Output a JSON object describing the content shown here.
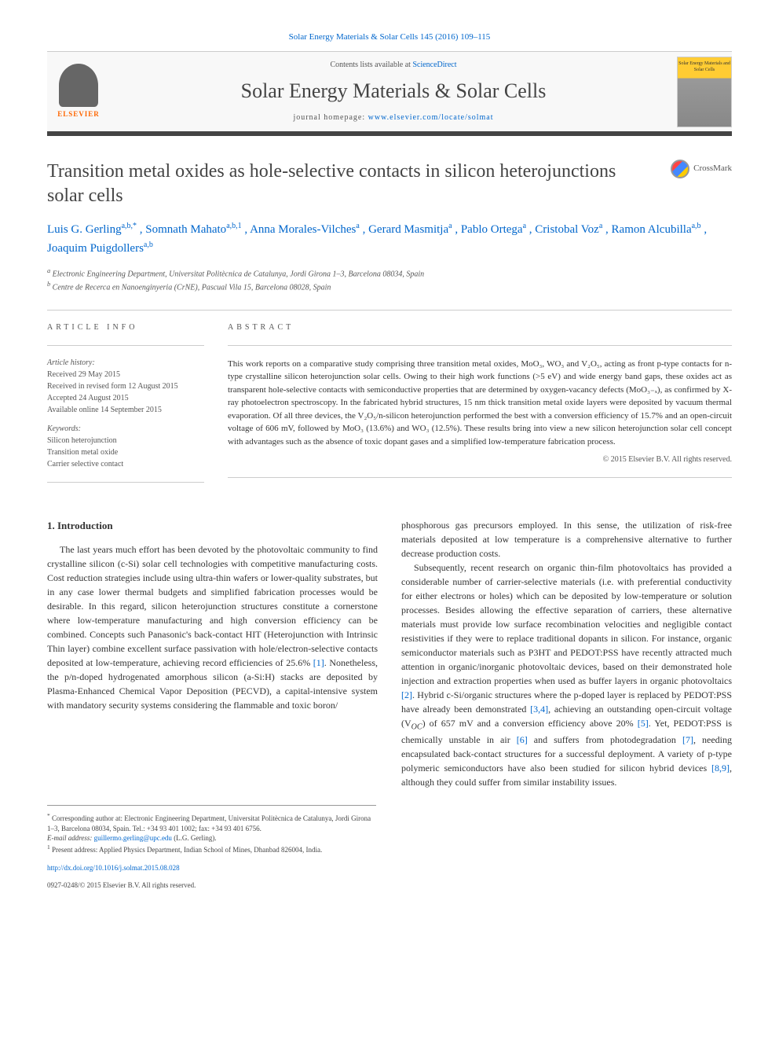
{
  "header": {
    "citation": "Solar Energy Materials & Solar Cells 145 (2016) 109–115",
    "contents_prefix": "Contents lists available at ",
    "contents_link": "ScienceDirect",
    "journal_name": "Solar Energy Materials & Solar Cells",
    "homepage_prefix": "journal homepage: ",
    "homepage_url": "www.elsevier.com/locate/solmat",
    "elsevier_label": "ELSEVIER",
    "cover_text": "Solar Energy Materials and Solar Cells"
  },
  "article": {
    "title": "Transition metal oxides as hole-selective contacts in silicon heterojunctions solar cells",
    "crossmark_label": "CrossMark",
    "authors_html": "Luis G. Gerling",
    "author_1": "Luis G. Gerling",
    "author_1_sup": "a,b,*",
    "author_2": ", Somnath Mahato",
    "author_2_sup": "a,b,1",
    "author_3": ", Anna Morales-Vilches",
    "author_3_sup": "a",
    "author_4": ", Gerard Masmitja",
    "author_4_sup": "a",
    "author_5": ", Pablo Ortega",
    "author_5_sup": "a",
    "author_6": ", Cristobal Voz",
    "author_6_sup": "a",
    "author_7": ", Ramon Alcubilla",
    "author_7_sup": "a,b",
    "author_8": ", Joaquim Puigdollers",
    "author_8_sup": "a,b",
    "affiliation_a": "Electronic Engineering Department, Universitat Politècnica de Catalunya, Jordi Girona 1–3, Barcelona 08034, Spain",
    "affiliation_b": "Centre de Recerca en Nanoenginyeria (CrNE), Pascual Vila 15, Barcelona 08028, Spain"
  },
  "info": {
    "heading": "ARTICLE INFO",
    "history_label": "Article history:",
    "received": "Received 29 May 2015",
    "revised": "Received in revised form 12 August 2015",
    "accepted": "Accepted 24 August 2015",
    "online": "Available online 14 September 2015",
    "keywords_label": "Keywords:",
    "kw1": "Silicon heterojunction",
    "kw2": "Transition metal oxide",
    "kw3": "Carrier selective contact"
  },
  "abstract": {
    "heading": "ABSTRACT",
    "text": "This work reports on a comparative study comprising three transition metal oxides, MoO₃, WO₃ and V₂O₅, acting as front p-type contacts for n-type crystalline silicon heterojunction solar cells. Owing to their high work functions (>5 eV) and wide energy band gaps, these oxides act as transparent hole-selective contacts with semiconductive properties that are determined by oxygen-vacancy defects (MoO₃₋ₓ), as confirmed by X-ray photoelectron spectroscopy. In the fabricated hybrid structures, 15 nm thick transition metal oxide layers were deposited by vacuum thermal evaporation. Of all three devices, the V₂O₅/n-silicon heterojunction performed the best with a conversion efficiency of 15.7% and an open-circuit voltage of 606 mV, followed by MoO₃ (13.6%) and WO₃ (12.5%). These results bring into view a new silicon heterojunction solar cell concept with advantages such as the absence of toxic dopant gases and a simplified low-temperature fabrication process.",
    "copyright": "© 2015 Elsevier B.V. All rights reserved."
  },
  "body": {
    "section_heading": "1. Introduction",
    "p1": "The last years much effort has been devoted by the photovoltaic community to find crystalline silicon (c-Si) solar cell technologies with competitive manufacturing costs. Cost reduction strategies include using ultra-thin wafers or lower-quality substrates, but in any case lower thermal budgets and simplified fabrication processes would be desirable. In this regard, silicon heterojunction structures constitute a cornerstone where low-temperature manufacturing and high conversion efficiency can be combined. Concepts such Panasonic's back-contact HIT (Heterojunction with Intrinsic Thin layer) combine excellent surface passivation with hole/electron-selective contacts deposited at low-temperature, achieving record efficiencies of 25.6% ",
    "p1_ref": "[1]",
    "p1_cont": ". Nonetheless, the p/n-doped hydrogenated amorphous silicon (a-Si:H) stacks are deposited by Plasma-Enhanced Chemical Vapor Deposition (PECVD), a capital-intensive system with mandatory security systems considering the flammable and toxic boron/",
    "p2_start": "phosphorous gas precursors employed. In this sense, the utilization of risk-free materials deposited at low temperature is a comprehensive alternative to further decrease production costs.",
    "p3": "Subsequently, recent research on organic thin-film photovoltaics has provided a considerable number of carrier-selective materials (i.e. with preferential conductivity for either electrons or holes) which can be deposited by low-temperature or solution processes. Besides allowing the effective separation of carriers, these alternative materials must provide low surface recombination velocities and negligible contact resistivities if they were to replace traditional dopants in silicon. For instance, organic semiconductor materials such as P3HT and PEDOT:PSS have recently attracted much attention in organic/inorganic photovoltaic devices, based on their demonstrated hole injection and extraction properties when used as buffer layers in organic photovoltaics ",
    "p3_ref2": "[2]",
    "p3_cont1": ". Hybrid c-Si/organic structures where the p-doped layer is replaced by PEDOT:PSS have already been demonstrated ",
    "p3_ref34": "[3,4]",
    "p3_cont2": ", achieving an outstanding open-circuit voltage (V",
    "p3_oc": "OC",
    "p3_cont3": ") of 657 mV and a conversion efficiency above 20% ",
    "p3_ref5": "[5]",
    "p3_cont4": ". Yet, PEDOT:PSS is chemically unstable in air ",
    "p3_ref6": "[6]",
    "p3_cont5": " and suffers from photodegradation ",
    "p3_ref7": "[7]",
    "p3_cont6": ", needing encapsulated back-contact structures for a successful deployment. A variety of p-type polymeric semiconductors have also been studied for silicon hybrid devices ",
    "p3_ref89": "[8,9]",
    "p3_cont7": ", although they could suffer from similar instability issues."
  },
  "footnotes": {
    "corr_label": "*",
    "corr_text": "Corresponding author at: Electronic Engineering Department, Universitat Politècnica de Catalunya, Jordi Girona 1–3, Barcelona 08034, Spain. Tel.: +34 93 401 1002; fax: +34 93 401 6756.",
    "email_label": "E-mail address: ",
    "email": "guillermo.gerling@upc.edu",
    "email_suffix": " (L.G. Gerling).",
    "present_label": "1",
    "present_text": " Present address: Applied Physics Department, Indian School of Mines, Dhanbad 826004, India.",
    "doi": "http://dx.doi.org/10.1016/j.solmat.2015.08.028",
    "issn_line": "0927-0248/© 2015 Elsevier B.V. All rights reserved."
  },
  "colors": {
    "link": "#0066cc",
    "text": "#333333",
    "muted": "#555555",
    "border": "#cccccc",
    "bar": "#444444",
    "orange": "#ff6600"
  }
}
